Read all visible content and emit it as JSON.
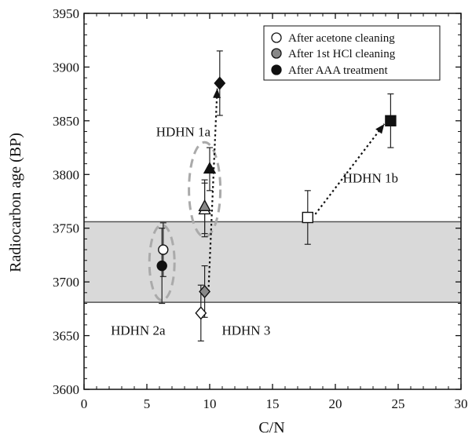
{
  "chart_data": {
    "type": "scatter",
    "xlabel": "C/N",
    "ylabel": "Radiocarbon age (BP)",
    "xlim": [
      0,
      30
    ],
    "ylim": [
      3600,
      3950
    ],
    "x_ticks": [
      0,
      5,
      10,
      15,
      20,
      25,
      30
    ],
    "y_ticks": [
      3600,
      3650,
      3700,
      3750,
      3800,
      3850,
      3900,
      3950
    ],
    "x_tick_labels": [
      "0",
      "5",
      "10",
      "15",
      "20",
      "25",
      "30"
    ],
    "y_tick_labels": [
      "3600",
      "3650",
      "3700",
      "3750",
      "3800",
      "3850",
      "3900",
      "3950"
    ],
    "grid": false,
    "legend_position": "top-right",
    "legend": [
      {
        "label": "After acetone cleaning",
        "marker": "circle",
        "fill": "#ffffff"
      },
      {
        "label": "After 1st HCl cleaning",
        "marker": "circle",
        "fill": "#888888"
      },
      {
        "label": "After AAA treatment",
        "marker": "circle",
        "fill": "#111111"
      }
    ],
    "shaded_band": {
      "y_from": 3681,
      "y_to": 3756
    },
    "group_labels": [
      {
        "text": "HDHN 1a",
        "x": 7.9,
        "y": 3840
      },
      {
        "text": "HDHN 1b",
        "x": 22.8,
        "y": 3797
      },
      {
        "text": "HDHN 2a",
        "x": 4.3,
        "y": 3655
      },
      {
        "text": "HDHN 3",
        "x": 12.9,
        "y": 3655
      }
    ],
    "ellipses": [
      {
        "cx": 6.2,
        "cy": 3718,
        "rx": 1.0,
        "ry": 35
      },
      {
        "cx": 9.6,
        "cy": 3786,
        "rx": 1.25,
        "ry": 44
      }
    ],
    "series": [
      {
        "group": "HDHN 2a",
        "stage": "acetone",
        "marker": "circle",
        "fill": "#ffffff",
        "x": 6.3,
        "y": 3730,
        "err": 25
      },
      {
        "group": "HDHN 2a",
        "stage": "AAA",
        "marker": "circle",
        "fill": "#111111",
        "x": 6.2,
        "y": 3715,
        "err": 35
      },
      {
        "group": "HDHN 3",
        "stage": "acetone",
        "marker": "diamond",
        "fill": "#ffffff",
        "x": 9.3,
        "y": 3671,
        "err": 26
      },
      {
        "group": "HDHN 3",
        "stage": "HCl",
        "marker": "diamond",
        "fill": "#888888",
        "x": 9.6,
        "y": 3691,
        "err": 24
      },
      {
        "group": "HDHN 3",
        "stage": "AAA",
        "marker": "diamond",
        "fill": "#111111",
        "x": 10.8,
        "y": 3885,
        "err": 30
      },
      {
        "group": "HDHN 1a",
        "stage": "acetone",
        "marker": "triangle",
        "fill": "#ffffff",
        "x": 9.6,
        "y": 3767,
        "err": 25
      },
      {
        "group": "HDHN 1a",
        "stage": "HCl",
        "marker": "triangle",
        "fill": "#888888",
        "x": 9.6,
        "y": 3770,
        "err": 25
      },
      {
        "group": "HDHN 1a",
        "stage": "AAA",
        "marker": "triangle",
        "fill": "#111111",
        "x": 10.0,
        "y": 3805,
        "err": 20
      },
      {
        "group": "HDHN 1b",
        "stage": "acetone",
        "marker": "square",
        "fill": "#ffffff",
        "x": 17.8,
        "y": 3760,
        "err": 25
      },
      {
        "group": "HDHN 1b",
        "stage": "AAA",
        "marker": "square",
        "fill": "#111111",
        "x": 24.4,
        "y": 3850,
        "err": 25
      }
    ],
    "arrows": [
      {
        "from": [
          9.9,
          3691
        ],
        "to": [
          10.6,
          3880
        ]
      },
      {
        "from": [
          18.4,
          3763
        ],
        "to": [
          23.9,
          3847
        ]
      }
    ]
  }
}
